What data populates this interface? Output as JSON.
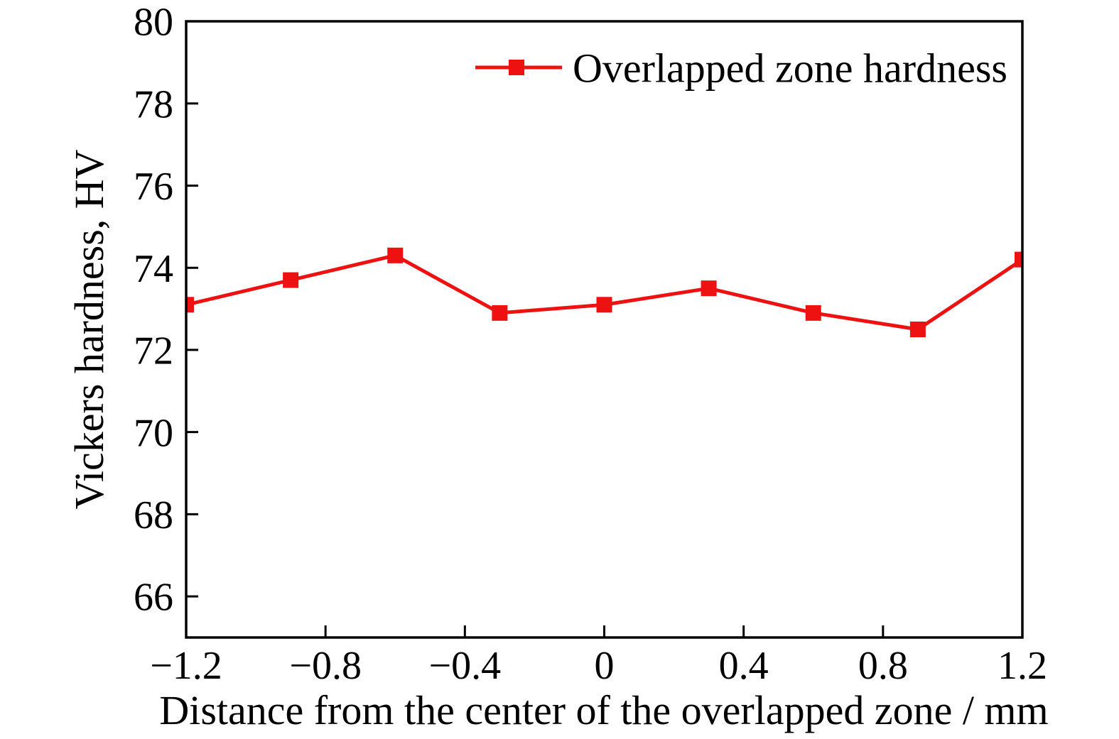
{
  "chart_data": {
    "type": "line",
    "title": "",
    "xlabel": "Distance from the center of the overlapped zone / mm",
    "ylabel": "Vickers hardness, HV",
    "xlim": [
      -1.2,
      1.2
    ],
    "ylim": [
      65,
      80
    ],
    "x_ticks": [
      -1.2,
      -0.8,
      -0.4,
      0,
      0.4,
      0.8,
      1.2
    ],
    "x_tick_labels": [
      "−1.2",
      "−0.8",
      "−0.4",
      "0",
      "0.4",
      "0.8",
      "1.2"
    ],
    "y_ticks": [
      66,
      68,
      70,
      72,
      74,
      76,
      78,
      80
    ],
    "y_tick_labels": [
      "66",
      "68",
      "70",
      "72",
      "74",
      "76",
      "78",
      "80"
    ],
    "grid": false,
    "frame": "full-box",
    "tick_direction": "in",
    "axis_color": "#000000",
    "background_color": "#ffffff",
    "legend": {
      "position": "upper-center",
      "border": false,
      "entries": [
        "Overlapped zone hardness"
      ]
    },
    "series": [
      {
        "name": "Overlapped zone hardness",
        "color": "#ee1111",
        "marker": "square",
        "line_style": "solid",
        "x": [
          -1.2,
          -0.9,
          -0.6,
          -0.3,
          0,
          0.3,
          0.6,
          0.9,
          1.2
        ],
        "y": [
          73.1,
          73.7,
          74.3,
          72.9,
          73.1,
          73.5,
          72.9,
          72.5,
          74.2
        ]
      }
    ]
  }
}
